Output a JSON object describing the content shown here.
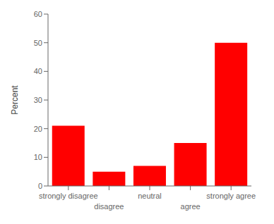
{
  "chart_data": {
    "type": "bar",
    "categories": [
      "strongly disagree",
      "disagree",
      "neutral",
      "agree",
      "strongly agree"
    ],
    "values": [
      21,
      5,
      7,
      15,
      50
    ],
    "color": "#ff0000",
    "ylabel": "Percent",
    "ylim": [
      0,
      60
    ],
    "yticks": [
      0,
      10,
      20,
      30,
      40,
      50,
      60
    ],
    "grid": false
  }
}
